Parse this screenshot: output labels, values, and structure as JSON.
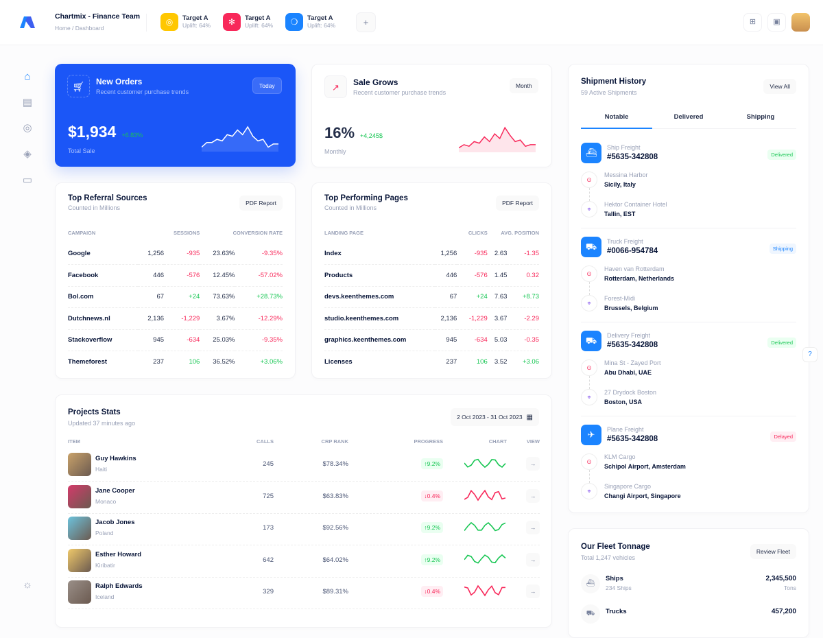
{
  "header": {
    "title": "Chartmix - Finance Team",
    "breadcrumb": [
      "Home",
      "Dashboard"
    ],
    "targets": [
      {
        "label": "Target A",
        "uplift": "Uplift: 64%",
        "color": "#ffc700",
        "icon": "target-icon"
      },
      {
        "label": "Target A",
        "uplift": "Uplift: 64%",
        "color": "#f8285a",
        "icon": "atom-icon"
      },
      {
        "label": "Target A",
        "uplift": "Uplift: 64%",
        "color": "#1b84ff",
        "icon": "chat-icon"
      }
    ],
    "add": "+"
  },
  "new_orders": {
    "title": "New Orders",
    "subtitle": "Recent customer purchase trends",
    "button": "Today",
    "value": "$1,934",
    "change": "+6.83%",
    "label": "Total Sale",
    "spark": [
      2,
      5,
      5,
      7,
      6,
      10,
      9,
      13,
      10,
      15,
      9,
      6,
      7,
      2,
      4,
      4
    ]
  },
  "sale_grows": {
    "title": "Sale Grows",
    "subtitle": "Recent customer purchase trends",
    "button": "Month",
    "value": "16%",
    "change": "+4,245$",
    "label": "Monthly",
    "spark": [
      2,
      4,
      3,
      6,
      5,
      9,
      6,
      11,
      8,
      15,
      10,
      6,
      7,
      3,
      4,
      4
    ]
  },
  "referral": {
    "title": "Top Referral Sources",
    "subtitle": "Counted in Millions",
    "button": "PDF Report",
    "columns": [
      "Campaign",
      "Sessions",
      "Conversion Rate"
    ],
    "rows": [
      [
        "Google",
        "1,256",
        "-935",
        "23.63%",
        "-9.35%"
      ],
      [
        "Facebook",
        "446",
        "-576",
        "12.45%",
        "-57.02%"
      ],
      [
        "Bol.com",
        "67",
        "+24",
        "73.63%",
        "+28.73%"
      ],
      [
        "Dutchnews.nl",
        "2,136",
        "-1,229",
        "3.67%",
        "-12.29%"
      ],
      [
        "Stackoverflow",
        "945",
        "-634",
        "25.03%",
        "-9.35%"
      ],
      [
        "Themeforest",
        "237",
        "106",
        "36.52%",
        "+3.06%"
      ]
    ]
  },
  "pages": {
    "title": "Top Performing Pages",
    "subtitle": "Counted in Millions",
    "button": "PDF Report",
    "columns": [
      "Landing Page",
      "Clicks",
      "Avg. Position"
    ],
    "rows": [
      [
        "Index",
        "1,256",
        "-935",
        "2.63",
        "-1.35"
      ],
      [
        "Products",
        "446",
        "-576",
        "1.45",
        "0.32"
      ],
      [
        "devs.keenthemes.com",
        "67",
        "+24",
        "7.63",
        "+8.73"
      ],
      [
        "studio.keenthemes.com",
        "2,136",
        "-1,229",
        "3.67",
        "-2.29"
      ],
      [
        "graphics.keenthemes.com",
        "945",
        "-634",
        "5.03",
        "-0.35"
      ],
      [
        "Licenses",
        "237",
        "106",
        "3.52",
        "+3.06"
      ]
    ]
  },
  "projects": {
    "title": "Projects Stats",
    "subtitle": "Updated 37 minutes ago",
    "date_range": "2 Oct 2023 - 31 Oct 2023",
    "columns": [
      "Item",
      "Calls",
      "CRP Rank",
      "Progress",
      "Chart",
      "View"
    ],
    "rows": [
      {
        "name": "Guy Hawkins",
        "country": "Haiti",
        "calls": "245",
        "rank": "$78.34%",
        "progress": "9.2%",
        "up": true,
        "avatar": "#c9a26a"
      },
      {
        "name": "Jane Cooper",
        "country": "Monaco",
        "calls": "725",
        "rank": "$63.83%",
        "progress": "0.4%",
        "up": false,
        "avatar": "#d43a6a"
      },
      {
        "name": "Jacob Jones",
        "country": "Poland",
        "calls": "173",
        "rank": "$92.56%",
        "progress": "9.2%",
        "up": true,
        "avatar": "#6cc3dd"
      },
      {
        "name": "Esther Howard",
        "country": "Kiribatir",
        "calls": "642",
        "rank": "$64.02%",
        "progress": "9.2%",
        "up": true,
        "avatar": "#f0c96a"
      },
      {
        "name": "Ralph Edwards",
        "country": "Iceland",
        "calls": "329",
        "rank": "$89.31%",
        "progress": "0.4%",
        "up": false,
        "avatar": "#9a8f88"
      }
    ]
  },
  "shipment": {
    "title": "Shipment History",
    "subtitle": "59 Active Shipments",
    "button": "View All",
    "tabs": [
      "Notable",
      "Delivered",
      "Shipping"
    ],
    "items": [
      {
        "type": "Ship Freight",
        "id": "#5635-342808",
        "status": "Delivered",
        "from": [
          "Messina Harbor",
          "Sicily, Italy"
        ],
        "to": [
          "Hektor Container Hotel",
          "Tallin, EST"
        ]
      },
      {
        "type": "Truck Freight",
        "id": "#0066-954784",
        "status": "Shipping",
        "from": [
          "Haven van Rotterdam",
          "Rotterdam, Netherlands"
        ],
        "to": [
          "Forest-Midi",
          "Brussels, Belgium"
        ]
      },
      {
        "type": "Delivery Freight",
        "id": "#5635-342808",
        "status": "Delivered",
        "from": [
          "Mina St - Zayed Port",
          "Abu Dhabi, UAE"
        ],
        "to": [
          "27 Drydock Boston",
          "Boston, USA"
        ]
      },
      {
        "type": "Plane Freight",
        "id": "#5635-342808",
        "status": "Delayed",
        "from": [
          "KLM Cargo",
          "Schipol Airport, Amsterdam"
        ],
        "to": [
          "Singapore Cargo",
          "Changi Airport, Singapore"
        ]
      }
    ]
  },
  "fleet": {
    "title": "Our Fleet Tonnage",
    "subtitle": "Total 1,247 vehicles",
    "button": "Review Fleet",
    "items": [
      {
        "name": "Ships",
        "sub": "234 Ships",
        "value": "2,345,500",
        "unit": "Tons"
      },
      {
        "name": "Trucks",
        "value": "457,200"
      }
    ]
  },
  "colors": {
    "primary": "#1b84ff",
    "success": "#17c653",
    "danger": "#f8285a"
  }
}
